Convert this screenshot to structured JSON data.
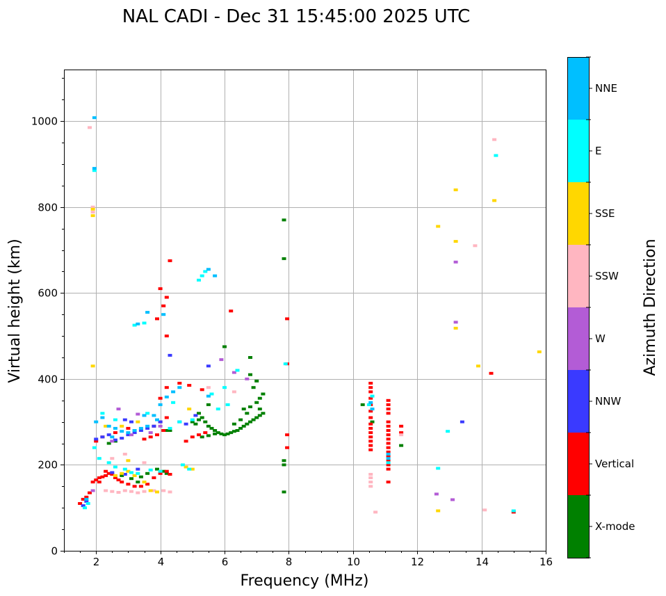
{
  "chart_data": {
    "type": "scatter",
    "title": "NAL CADI - Dec 31 15:45:00 2025 UTC",
    "xlabel": "Frequency (MHz)",
    "ylabel": "Virtual height (km)",
    "xlim": [
      1,
      16
    ],
    "ylim": [
      0,
      1120
    ],
    "xticks": [
      2,
      4,
      6,
      8,
      10,
      12,
      14,
      16
    ],
    "yticks": [
      0,
      200,
      400,
      600,
      800,
      1000
    ],
    "grid": true,
    "colorbar": {
      "label": "Azimuth Direction",
      "categories": [
        "X-mode",
        "Vertical",
        "NNW",
        "W",
        "SSW",
        "SSE",
        "E",
        "NNE"
      ],
      "colors": [
        "#008000",
        "#ff0000",
        "#3a3aff",
        "#b35cd6",
        "#ffb6c1",
        "#ffd700",
        "#00ffff",
        "#00bfff"
      ]
    },
    "series": [
      {
        "name": "X-mode",
        "points": [
          [
            5.0,
            300
          ],
          [
            5.1,
            295
          ],
          [
            5.2,
            305
          ],
          [
            5.3,
            310
          ],
          [
            5.4,
            300
          ],
          [
            5.5,
            290
          ],
          [
            5.6,
            285
          ],
          [
            5.7,
            280
          ],
          [
            5.8,
            275
          ],
          [
            5.9,
            272
          ],
          [
            6.0,
            270
          ],
          [
            6.1,
            272
          ],
          [
            6.2,
            275
          ],
          [
            6.3,
            278
          ],
          [
            6.4,
            280
          ],
          [
            6.5,
            285
          ],
          [
            6.6,
            290
          ],
          [
            6.7,
            295
          ],
          [
            6.8,
            300
          ],
          [
            6.9,
            305
          ],
          [
            7.0,
            310
          ],
          [
            7.1,
            315
          ],
          [
            7.2,
            320
          ],
          [
            6.6,
            330
          ],
          [
            6.8,
            335
          ],
          [
            7.0,
            345
          ],
          [
            7.1,
            355
          ],
          [
            7.2,
            365
          ],
          [
            6.9,
            380
          ],
          [
            7.0,
            395
          ],
          [
            6.8,
            410
          ],
          [
            6.8,
            450
          ],
          [
            6.0,
            475
          ],
          [
            5.3,
            265
          ],
          [
            5.5,
            268
          ],
          [
            5.7,
            272
          ],
          [
            6.3,
            295
          ],
          [
            6.5,
            305
          ],
          [
            6.7,
            320
          ],
          [
            7.1,
            330
          ],
          [
            4.2,
            280
          ],
          [
            4.3,
            280
          ],
          [
            3.9,
            190
          ],
          [
            4.1,
            185
          ],
          [
            4.2,
            180
          ],
          [
            3.6,
            180
          ],
          [
            3.4,
            172
          ],
          [
            3.3,
            160
          ],
          [
            2.8,
            175
          ],
          [
            3.1,
            168
          ],
          [
            7.85,
            770
          ],
          [
            7.85,
            680
          ],
          [
            7.85,
            210
          ],
          [
            7.85,
            200
          ],
          [
            7.85,
            137
          ],
          [
            10.3,
            340
          ],
          [
            10.6,
            300
          ],
          [
            11.5,
            245
          ],
          [
            2.4,
            250
          ],
          [
            2.6,
            255
          ],
          [
            5.2,
            320
          ],
          [
            5.5,
            340
          ]
        ]
      },
      {
        "name": "Vertical",
        "points": [
          [
            1.5,
            110
          ],
          [
            1.6,
            120
          ],
          [
            1.7,
            125
          ],
          [
            1.8,
            135
          ],
          [
            1.9,
            160
          ],
          [
            2.0,
            165
          ],
          [
            2.1,
            170
          ],
          [
            2.2,
            172
          ],
          [
            2.3,
            175
          ],
          [
            2.4,
            180
          ],
          [
            2.5,
            178
          ],
          [
            2.6,
            170
          ],
          [
            2.7,
            165
          ],
          [
            2.8,
            160
          ],
          [
            3.0,
            155
          ],
          [
            3.2,
            150
          ],
          [
            3.4,
            150
          ],
          [
            3.6,
            155
          ],
          [
            3.8,
            170
          ],
          [
            4.0,
            180
          ],
          [
            4.2,
            185
          ],
          [
            4.3,
            178
          ],
          [
            3.5,
            260
          ],
          [
            3.7,
            265
          ],
          [
            3.9,
            270
          ],
          [
            4.1,
            280
          ],
          [
            3.8,
            290
          ],
          [
            4.0,
            300
          ],
          [
            4.2,
            310
          ],
          [
            4.0,
            355
          ],
          [
            4.2,
            380
          ],
          [
            3.9,
            540
          ],
          [
            4.1,
            570
          ],
          [
            4.0,
            610
          ],
          [
            4.2,
            590
          ],
          [
            4.3,
            675
          ],
          [
            4.2,
            500
          ],
          [
            4.8,
            255
          ],
          [
            5.0,
            265
          ],
          [
            5.2,
            270
          ],
          [
            5.4,
            275
          ],
          [
            4.6,
            390
          ],
          [
            4.9,
            385
          ],
          [
            5.3,
            375
          ],
          [
            6.2,
            558
          ],
          [
            7.95,
            540
          ],
          [
            7.95,
            435
          ],
          [
            7.95,
            270
          ],
          [
            7.95,
            240
          ],
          [
            10.55,
            390
          ],
          [
            10.55,
            380
          ],
          [
            10.55,
            370
          ],
          [
            10.55,
            355
          ],
          [
            10.55,
            340
          ],
          [
            10.55,
            325
          ],
          [
            10.55,
            310
          ],
          [
            10.55,
            295
          ],
          [
            10.55,
            285
          ],
          [
            10.55,
            275
          ],
          [
            10.55,
            265
          ],
          [
            10.55,
            255
          ],
          [
            10.55,
            245
          ],
          [
            10.55,
            235
          ],
          [
            11.1,
            350
          ],
          [
            11.1,
            340
          ],
          [
            11.1,
            330
          ],
          [
            11.1,
            320
          ],
          [
            11.1,
            300
          ],
          [
            11.1,
            290
          ],
          [
            11.1,
            280
          ],
          [
            11.1,
            270
          ],
          [
            11.1,
            260
          ],
          [
            11.1,
            250
          ],
          [
            11.1,
            240
          ],
          [
            11.1,
            230
          ],
          [
            11.1,
            220
          ],
          [
            11.1,
            210
          ],
          [
            11.1,
            200
          ],
          [
            11.1,
            190
          ],
          [
            11.1,
            160
          ],
          [
            11.5,
            290
          ],
          [
            11.5,
            275
          ],
          [
            14.3,
            413
          ],
          [
            15.0,
            90
          ],
          [
            2.0,
            255
          ],
          [
            2.2,
            265
          ],
          [
            2.6,
            275
          ],
          [
            3.0,
            285
          ],
          [
            2.3,
            185
          ],
          [
            2.1,
            160
          ]
        ]
      },
      {
        "name": "NNW",
        "points": [
          [
            1.6,
            105
          ],
          [
            1.7,
            115
          ],
          [
            2.0,
            260
          ],
          [
            2.2,
            265
          ],
          [
            2.4,
            270
          ],
          [
            2.6,
            258
          ],
          [
            2.8,
            262
          ],
          [
            3.0,
            270
          ],
          [
            3.2,
            275
          ],
          [
            3.4,
            280
          ],
          [
            3.6,
            285
          ],
          [
            3.8,
            290
          ],
          [
            4.0,
            300
          ],
          [
            4.3,
            455
          ],
          [
            4.6,
            300
          ],
          [
            4.8,
            295
          ],
          [
            5.1,
            315
          ],
          [
            5.5,
            430
          ],
          [
            2.9,
            305
          ],
          [
            3.1,
            300
          ],
          [
            13.4,
            300
          ],
          [
            2.5,
            182
          ],
          [
            2.9,
            178
          ],
          [
            3.3,
            190
          ]
        ]
      },
      {
        "name": "W",
        "points": [
          [
            12.6,
            132
          ],
          [
            13.1,
            119
          ],
          [
            13.2,
            672
          ],
          [
            13.2,
            532
          ],
          [
            1.9,
            140
          ],
          [
            2.5,
            255
          ],
          [
            3.1,
            270
          ],
          [
            3.7,
            275
          ],
          [
            4.0,
            290
          ],
          [
            5.9,
            445
          ],
          [
            6.3,
            415
          ],
          [
            6.7,
            400
          ],
          [
            2.7,
            330
          ],
          [
            3.3,
            318
          ]
        ]
      },
      {
        "name": "SSW",
        "points": [
          [
            1.8,
            985
          ],
          [
            1.9,
            800
          ],
          [
            1.9,
            788
          ],
          [
            2.3,
            140
          ],
          [
            2.5,
            138
          ],
          [
            2.7,
            136
          ],
          [
            2.9,
            140
          ],
          [
            3.1,
            138
          ],
          [
            3.3,
            135
          ],
          [
            3.5,
            138
          ],
          [
            3.8,
            140
          ],
          [
            4.1,
            140
          ],
          [
            4.3,
            137
          ],
          [
            13.8,
            710
          ],
          [
            14.4,
            957
          ],
          [
            14.1,
            95
          ],
          [
            10.55,
            178
          ],
          [
            10.55,
            170
          ],
          [
            10.55,
            160
          ],
          [
            10.55,
            150
          ],
          [
            10.7,
            90
          ],
          [
            11.5,
            270
          ],
          [
            2.5,
            215
          ],
          [
            2.9,
            225
          ],
          [
            3.5,
            205
          ],
          [
            5.5,
            380
          ],
          [
            6.3,
            370
          ]
        ]
      },
      {
        "name": "SSE",
        "points": [
          [
            1.9,
            780
          ],
          [
            1.9,
            795
          ],
          [
            1.9,
            430
          ],
          [
            2.6,
            175
          ],
          [
            2.8,
            180
          ],
          [
            3.0,
            185
          ],
          [
            3.2,
            175
          ],
          [
            3.5,
            160
          ],
          [
            3.7,
            140
          ],
          [
            3.9,
            137
          ],
          [
            4.8,
            195
          ],
          [
            5.0,
            190
          ],
          [
            13.2,
            840
          ],
          [
            13.2,
            720
          ],
          [
            13.2,
            518
          ],
          [
            14.4,
            815
          ],
          [
            12.65,
            755
          ],
          [
            13.9,
            430
          ],
          [
            12.65,
            93
          ],
          [
            15.8,
            463
          ],
          [
            2.3,
            290
          ],
          [
            2.8,
            290
          ],
          [
            3.3,
            300
          ],
          [
            4.9,
            330
          ],
          [
            3.0,
            210
          ]
        ]
      },
      {
        "name": "E",
        "points": [
          [
            1.65,
            100
          ],
          [
            1.75,
            110
          ],
          [
            1.95,
            240
          ],
          [
            2.1,
            215
          ],
          [
            2.4,
            205
          ],
          [
            2.6,
            195
          ],
          [
            2.9,
            190
          ],
          [
            3.1,
            182
          ],
          [
            3.3,
            180
          ],
          [
            3.7,
            188
          ],
          [
            4.0,
            185
          ],
          [
            4.7,
            200
          ],
          [
            4.9,
            190
          ],
          [
            3.2,
            525
          ],
          [
            3.5,
            530
          ],
          [
            5.3,
            640
          ],
          [
            5.4,
            650
          ],
          [
            5.2,
            630
          ],
          [
            4.3,
            285
          ],
          [
            4.6,
            300
          ],
          [
            5.0,
            305
          ],
          [
            5.8,
            330
          ],
          [
            6.1,
            340
          ],
          [
            6.4,
            420
          ],
          [
            7.9,
            435
          ],
          [
            10.5,
            340
          ],
          [
            10.6,
            360
          ],
          [
            11.1,
            205
          ],
          [
            12.65,
            192
          ],
          [
            12.95,
            278
          ],
          [
            14.45,
            920
          ],
          [
            15.0,
            93
          ],
          [
            2.2,
            320
          ],
          [
            2.6,
            305
          ],
          [
            3.6,
            320
          ],
          [
            4.4,
            345
          ],
          [
            5.6,
            365
          ],
          [
            6.0,
            380
          ],
          [
            1.95,
            885
          ]
        ]
      },
      {
        "name": "NNE",
        "points": [
          [
            1.95,
            1008
          ],
          [
            1.95,
            890
          ],
          [
            2.0,
            300
          ],
          [
            2.2,
            310
          ],
          [
            2.4,
            290
          ],
          [
            2.6,
            285
          ],
          [
            2.8,
            278
          ],
          [
            3.0,
            275
          ],
          [
            3.2,
            280
          ],
          [
            3.4,
            285
          ],
          [
            3.6,
            290
          ],
          [
            3.8,
            315
          ],
          [
            4.0,
            340
          ],
          [
            4.2,
            358
          ],
          [
            4.4,
            370
          ],
          [
            4.6,
            380
          ],
          [
            5.5,
            360
          ],
          [
            3.3,
            528
          ],
          [
            3.6,
            555
          ],
          [
            4.1,
            550
          ],
          [
            5.5,
            655
          ],
          [
            5.7,
            640
          ],
          [
            1.7,
            120
          ],
          [
            3.5,
            315
          ],
          [
            10.55,
            345
          ],
          [
            10.6,
            330
          ],
          [
            11.1,
            215
          ],
          [
            11.1,
            225
          ],
          [
            2.5,
            265
          ],
          [
            3.9,
            305
          ]
        ]
      }
    ]
  }
}
